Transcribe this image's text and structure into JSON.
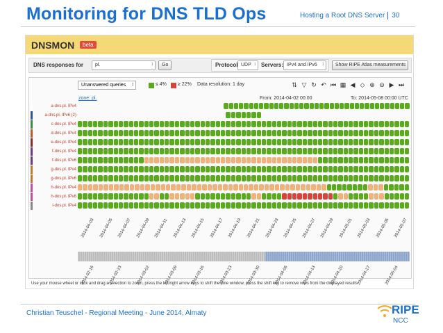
{
  "slide": {
    "title": "Monitoring for DNS TLD Ops",
    "header_right": "Hosting a Root DNS Server",
    "page_number": "30",
    "footer": "Christian Teuschel - Regional Meeting - June 2014, Almaty",
    "logo_main": "RIPE",
    "logo_sub": "NCC"
  },
  "app": {
    "brand": "DNSMON",
    "beta": "beta"
  },
  "controls": {
    "dns_label": "DNS responses for",
    "zone_value": "pl.",
    "go": "Go",
    "protocol_label": "Protocol:",
    "protocol_value": "UDP",
    "servers_label": "Servers:",
    "servers_value": "IPv4 and IPv6",
    "atlas_button": "Show RIPE Atlas measurements"
  },
  "toolbar": {
    "metric": "Unanswered queries",
    "legend_good": "≤ 4%",
    "legend_bad": "≥ 22%",
    "resolution": "Data resolution: 1 day"
  },
  "chart": {
    "zone_link": "zone: pl.",
    "from": "From: 2014-04-02 00:00",
    "to": "To: 2014-05-08 00:00 UTC",
    "help": "Use your mouse wheel or click and drag a selection to zoom, press the left/right arrow keys to shift the time window, press the shift key to remove rows from the displayed results"
  },
  "colors": {
    "good": "#5aaa1e",
    "mid": "#f0b27a",
    "warn": "#e8924e",
    "bad": "#d9443a",
    "empty": "#fafafa"
  },
  "rows": [
    {
      "label": "a-dns.pl. IPv4",
      "marker": "#ffffff",
      "cells": "eeeeeeeeeeeeeeeeeeeeeeeeeeeeeggggggggggggggggggggggggggggggggggggg"
    },
    {
      "label": "a-dns.pl. IPv6 (2)",
      "marker": "#2f5597",
      "cells": "eeeeeeeeeeeeeeeeeeeeeeeeeeeeegggggggeeeeeeeeeeeeeeeeeeeeeeeeeeeee"
    },
    {
      "label": "c-dns.pl. IPv4",
      "marker": "#3d8a3d",
      "cells": "ggggggggggggggggggggggggggggggggggggggggggggggggggggggggggggggggg"
    },
    {
      "label": "d-dns.pl. IPv4",
      "marker": "#b85c2d",
      "cells": "ggggggggggggggggggggggggggggggggggggggggggggggggggggggggggggggggg"
    },
    {
      "label": "e-dns.pl. IPv4",
      "marker": "#8b2a2a",
      "cells": "ggggggggggggggggggggggggggggggggggggggggggggggggggggggggggggggggg"
    },
    {
      "label": "f-dns.pl. IPv4",
      "marker": "#6a3d8a",
      "cells": "ggggggggggggggggggggggggggggggggggggggggggggggggggggggggggggggggg"
    },
    {
      "label": "f-dns.pl. IPv6",
      "marker": "#6a3d8a",
      "cells": "gggggggggggggmmmmmmmmmmmmmmmmmmmmmmmmmmmmmmmmmmgggggggggggggggggg"
    },
    {
      "label": "g-dns.pl. IPv4",
      "marker": "#c07b30",
      "cells": "ggggggggggggggggggggggggggggggggggggggggggggggggggggggggggggggggg"
    },
    {
      "label": "g-dns.pl. IPv6",
      "marker": "#c07b30",
      "cells": "ggggggggggggggggggggggggggggggggggggggggggggggggggggggggggggggggg"
    },
    {
      "label": "h-dns.pl. IPv4",
      "marker": "#c050a0",
      "cells": "mmmmmmmmmmmmmmmmmmmmmmmmmmmmmmmmmmmmmmmmmmmmmmmmggggggggmmmggggg"
    },
    {
      "label": "h-dns.pl. IPv6",
      "marker": "#c050a0",
      "cells": "ggggggggggggggmmggmmmmmgggggggggggmmggggbbbbbbbbbbgmmggggmmmggggg"
    },
    {
      "label": "i-dns.pl. IPv4",
      "marker": "#888888",
      "cells": "ggggggggggggggggggggggggggggggggggggggggggggggggggggggggggggggggg"
    }
  ],
  "axis_ticks": [
    "2014-04-03",
    "2014-04-05",
    "2014-04-07",
    "2014-04-09",
    "2014-04-11",
    "2014-04-13",
    "2014-04-15",
    "2014-04-17",
    "2014-04-19",
    "2014-04-21",
    "2014-04-23",
    "2014-04-25",
    "2014-04-27",
    "2014-04-29",
    "2014-05-01",
    "2014-05-03",
    "2014-05-05",
    "2014-05-07"
  ],
  "nav_ticks": [
    "2014-02-16",
    "2014-02-23",
    "2014-03-02",
    "2014-03-09",
    "2014-03-16",
    "2014-03-23",
    "2014-03-30",
    "2014-04-06",
    "2014-04-13",
    "2014-04-20",
    "2014-04-27",
    "2014-05-04"
  ]
}
